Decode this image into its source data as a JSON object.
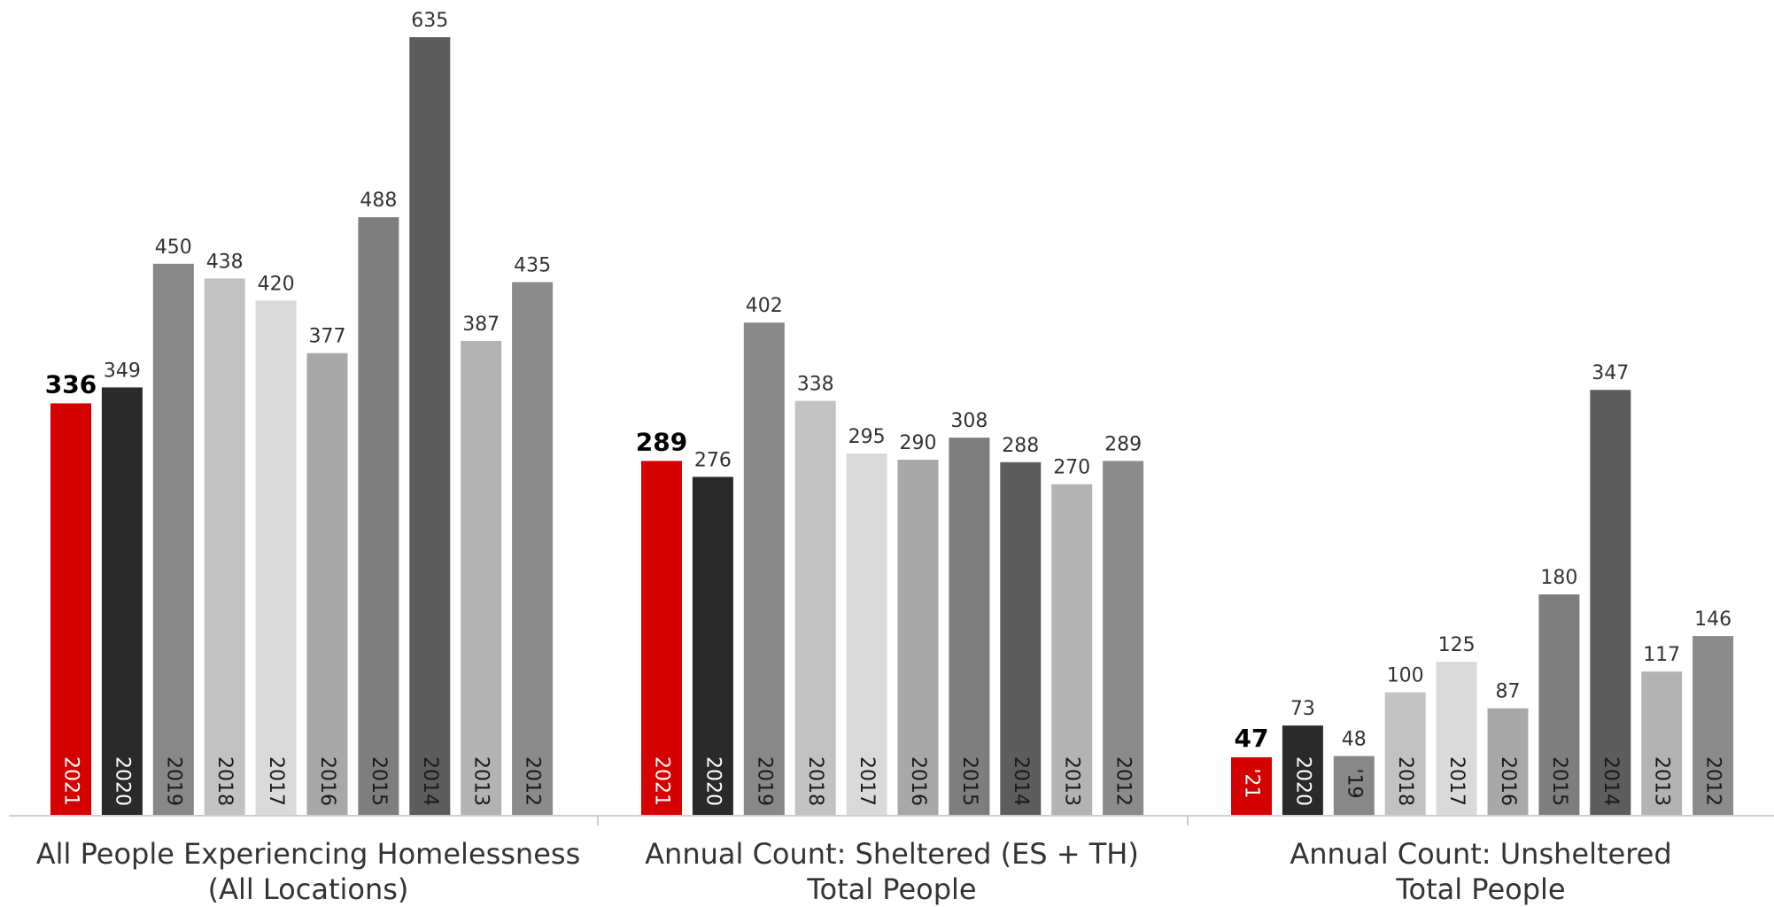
{
  "chart_data": {
    "type": "bar",
    "title": "",
    "xlabel": "",
    "ylabel": "",
    "ylim": [
      0,
      650
    ],
    "grid": false,
    "legend": "none",
    "colors": {
      "current": "#d50000",
      "2020": "#2a2a2a",
      "2019": "#888888",
      "2018": "#c2c2c2",
      "2017": "#dadada",
      "2016": "#a8a8a8",
      "2015": "#7e7e7e",
      "2014": "#5d5d5d",
      "2013": "#b3b3b3",
      "2012": "#8b8b8b"
    },
    "groups": [
      {
        "label_line1": "All People Experiencing Homelessness",
        "label_line2": "(All Locations)",
        "bars": [
          {
            "year": "2021",
            "value": 336,
            "label": "336",
            "highlight": true,
            "color_key": "current"
          },
          {
            "year": "2020",
            "value": 349,
            "label": "349",
            "color_key": "2020"
          },
          {
            "year": "2019",
            "value": 450,
            "label": "450",
            "color_key": "2019"
          },
          {
            "year": "2018",
            "value": 438,
            "label": "438",
            "color_key": "2018"
          },
          {
            "year": "2017",
            "value": 420,
            "label": "420",
            "color_key": "2017"
          },
          {
            "year": "2016",
            "value": 377,
            "label": "377",
            "color_key": "2016"
          },
          {
            "year": "2015",
            "value": 488,
            "label": "488",
            "color_key": "2015"
          },
          {
            "year": "2014",
            "value": 635,
            "label": "635",
            "color_key": "2014"
          },
          {
            "year": "2013",
            "value": 387,
            "label": "387",
            "color_key": "2013"
          },
          {
            "year": "2012",
            "value": 435,
            "label": "435",
            "color_key": "2012"
          }
        ]
      },
      {
        "label_line1": "Annual Count: Sheltered (ES + TH)",
        "label_line2": "Total People",
        "bars": [
          {
            "year": "2021",
            "value": 289,
            "label": "289",
            "highlight": true,
            "color_key": "current"
          },
          {
            "year": "2020",
            "value": 276,
            "label": "276",
            "color_key": "2020"
          },
          {
            "year": "2019",
            "value": 402,
            "label": "402",
            "color_key": "2019"
          },
          {
            "year": "2018",
            "value": 338,
            "label": "338",
            "color_key": "2018"
          },
          {
            "year": "2017",
            "value": 295,
            "label": "295",
            "color_key": "2017"
          },
          {
            "year": "2016",
            "value": 290,
            "label": "290",
            "color_key": "2016"
          },
          {
            "year": "2015",
            "value": 308,
            "label": "308",
            "color_key": "2015"
          },
          {
            "year": "2014",
            "value": 288,
            "label": "288",
            "color_key": "2014"
          },
          {
            "year": "2013",
            "value": 270,
            "label": "270",
            "color_key": "2013"
          },
          {
            "year": "2012",
            "value": 289,
            "label": "289",
            "color_key": "2012"
          }
        ]
      },
      {
        "label_line1": "Annual Count: Unsheltered",
        "label_line2": "Total People",
        "bars": [
          {
            "year": "'21",
            "value": 47,
            "label": "47",
            "highlight": true,
            "color_key": "current"
          },
          {
            "year": "2020",
            "value": 73,
            "label": "73",
            "color_key": "2020"
          },
          {
            "year": "'19",
            "value": 48,
            "label": "48",
            "color_key": "2019"
          },
          {
            "year": "2018",
            "value": 100,
            "label": "100",
            "color_key": "2018"
          },
          {
            "year": "2017",
            "value": 125,
            "label": "125",
            "color_key": "2017"
          },
          {
            "year": "2016",
            "value": 87,
            "label": "87",
            "color_key": "2016"
          },
          {
            "year": "2015",
            "value": 180,
            "label": "180",
            "color_key": "2015"
          },
          {
            "year": "2014",
            "value": 347,
            "label": "347",
            "color_key": "2014"
          },
          {
            "year": "2013",
            "value": 117,
            "label": "117",
            "color_key": "2013"
          },
          {
            "year": "2012",
            "value": 146,
            "label": "146",
            "color_key": "2012"
          }
        ]
      }
    ]
  }
}
